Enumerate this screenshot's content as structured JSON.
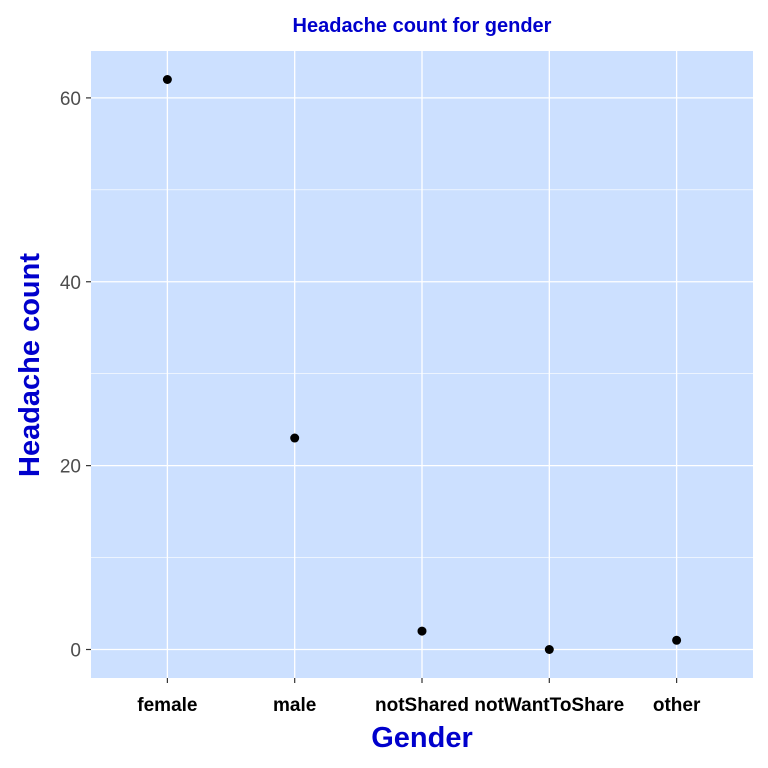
{
  "chart_data": {
    "type": "scatter",
    "title": "Headache count for gender",
    "xlabel": "Gender",
    "ylabel": "Headache count",
    "categories": [
      "female",
      "male",
      "notShared",
      "notWantToShare",
      "other"
    ],
    "values": [
      62,
      23,
      2,
      0,
      1
    ],
    "ylim": [
      -3.1,
      65.1
    ],
    "yticks": [
      0,
      20,
      40,
      60
    ],
    "ytick_labels": [
      "0",
      "20",
      "40",
      "60"
    ],
    "grid": true,
    "colors": {
      "panel": "#cce0ff",
      "grid": "#ffffff",
      "point": "#000000",
      "title": "#0000cc"
    }
  }
}
